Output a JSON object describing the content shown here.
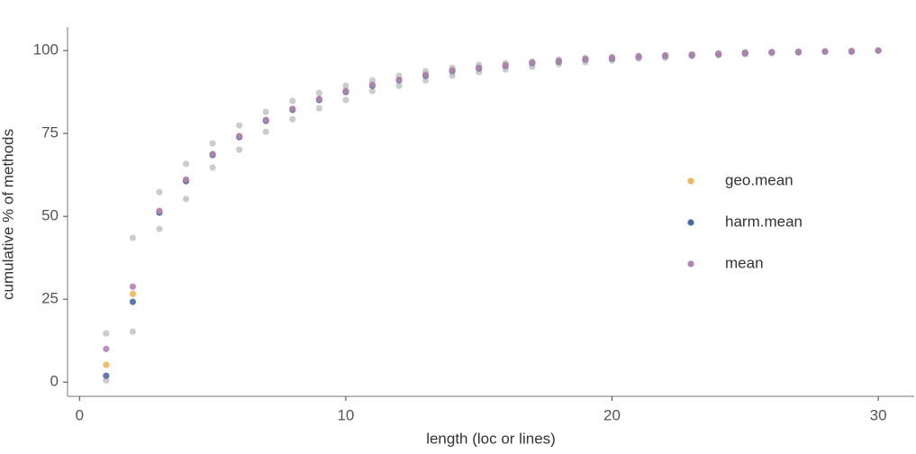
{
  "chart_data": {
    "type": "scatter",
    "x_label": "length (loc or lines)",
    "y_label": "cumulative % of methods",
    "x": [
      1,
      2,
      3,
      4,
      5,
      6,
      7,
      8,
      9,
      10,
      11,
      12,
      13,
      14,
      15,
      16,
      17,
      18,
      19,
      20,
      21,
      22,
      23,
      24,
      25,
      26,
      27,
      28,
      29,
      30
    ],
    "series": [
      {
        "color": "#c6c6c6",
        "values": [
          14.7,
          43.5,
          57.3,
          65.8,
          72.0,
          77.4,
          81.5,
          84.8,
          87.2,
          89.4,
          91.0,
          92.4,
          93.8,
          94.8,
          95.7,
          96.2,
          96.7,
          97.3,
          97.8,
          98.1,
          98.4,
          98.6,
          98.9,
          99.2,
          99.5,
          99.5,
          99.7,
          99.7,
          99.9,
          100
        ]
      },
      {
        "color": "#c6c6c6",
        "values": [
          0.5,
          15.2,
          46.2,
          55.2,
          64.7,
          70.1,
          75.5,
          79.3,
          82.6,
          85.1,
          87.8,
          89.4,
          91.0,
          92.4,
          93.5,
          94.3,
          95.1,
          95.9,
          96.5,
          97.0,
          97.6,
          97.8,
          98.4,
          98.6,
          98.9,
          99.2,
          99.5,
          99.7,
          99.7,
          100
        ]
      },
      {
        "name": "geo.mean",
        "color": "#efb75b",
        "values": [
          5.2,
          26.6,
          51.6,
          60.9,
          68.7,
          74.1,
          79.0,
          82.3,
          85.3,
          87.7,
          89.6,
          91.2,
          92.6,
          93.9,
          94.7,
          95.5,
          96.3,
          96.8,
          97.4,
          97.7,
          98.2,
          98.5,
          98.7,
          99.0,
          99.3,
          99.5,
          99.6,
          99.7,
          99.8,
          100
        ]
      },
      {
        "name": "harm.mean",
        "color": "#4b6c9e",
        "values": [
          1.9,
          24.2,
          51.1,
          60.6,
          68.5,
          73.9,
          78.8,
          82.1,
          85.1,
          87.5,
          89.4,
          91.0,
          92.4,
          93.8,
          94.6,
          95.4,
          96.2,
          96.7,
          97.3,
          97.6,
          98.1,
          98.4,
          98.6,
          98.9,
          99.2,
          99.5,
          99.5,
          99.7,
          99.7,
          100
        ]
      },
      {
        "name": "mean",
        "color": "#b385b0",
        "values": [
          10.0,
          28.8,
          51.6,
          61.1,
          68.8,
          74.2,
          79.1,
          82.4,
          85.4,
          87.8,
          89.7,
          91.2,
          92.7,
          94.0,
          94.8,
          95.6,
          96.3,
          96.9,
          97.4,
          97.8,
          98.2,
          98.5,
          98.7,
          99.0,
          99.3,
          99.5,
          99.6,
          99.7,
          99.8,
          100
        ]
      }
    ],
    "xlim": [
      -0.45,
      31.35
    ],
    "ylim": [
      -4.3,
      107.1
    ],
    "xticks": [
      0,
      10,
      20,
      30
    ],
    "yticks": [
      0,
      25,
      50,
      75,
      100
    ],
    "grid": false,
    "legend_position": "right"
  }
}
